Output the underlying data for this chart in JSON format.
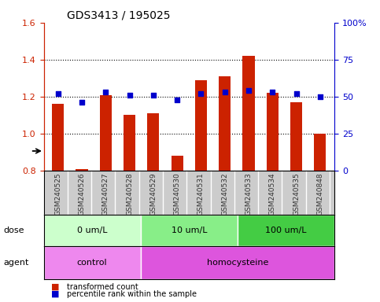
{
  "title": "GDS3413 / 195025",
  "samples": [
    "GSM240525",
    "GSM240526",
    "GSM240527",
    "GSM240528",
    "GSM240529",
    "GSM240530",
    "GSM240531",
    "GSM240532",
    "GSM240533",
    "GSM240534",
    "GSM240535",
    "GSM240848"
  ],
  "transformed_count": [
    1.16,
    0.81,
    1.21,
    1.1,
    1.11,
    0.88,
    1.29,
    1.31,
    1.42,
    1.22,
    1.17,
    1.0
  ],
  "percentile_rank": [
    52,
    46,
    53,
    51,
    51,
    48,
    52,
    53,
    54,
    53,
    52,
    50
  ],
  "ylim_left": [
    0.8,
    1.6
  ],
  "ylim_right": [
    0,
    100
  ],
  "yticks_left": [
    0.8,
    1.0,
    1.2,
    1.4,
    1.6
  ],
  "yticks_right": [
    0,
    25,
    50,
    75,
    100
  ],
  "bar_color": "#cc2200",
  "dot_color": "#0000cc",
  "bar_width": 0.5,
  "dose_groups": [
    {
      "label": "0 um/L",
      "start": 0,
      "end": 3,
      "color": "#ccffcc"
    },
    {
      "label": "10 um/L",
      "start": 4,
      "end": 7,
      "color": "#88ee88"
    },
    {
      "label": "100 um/L",
      "start": 8,
      "end": 11,
      "color": "#44cc44"
    }
  ],
  "agent_groups": [
    {
      "label": "control",
      "start": 0,
      "end": 3,
      "color": "#ee88ee"
    },
    {
      "label": "homocysteine",
      "start": 4,
      "end": 11,
      "color": "#dd55dd"
    }
  ],
  "dose_label": "dose",
  "agent_label": "agent",
  "legend_bar_label": "transformed count",
  "legend_dot_label": "percentile rank within the sample",
  "left_axis_color": "#cc2200",
  "right_axis_color": "#0000cc",
  "sample_bg_color": "#cccccc",
  "sample_sep_color": "#888888"
}
